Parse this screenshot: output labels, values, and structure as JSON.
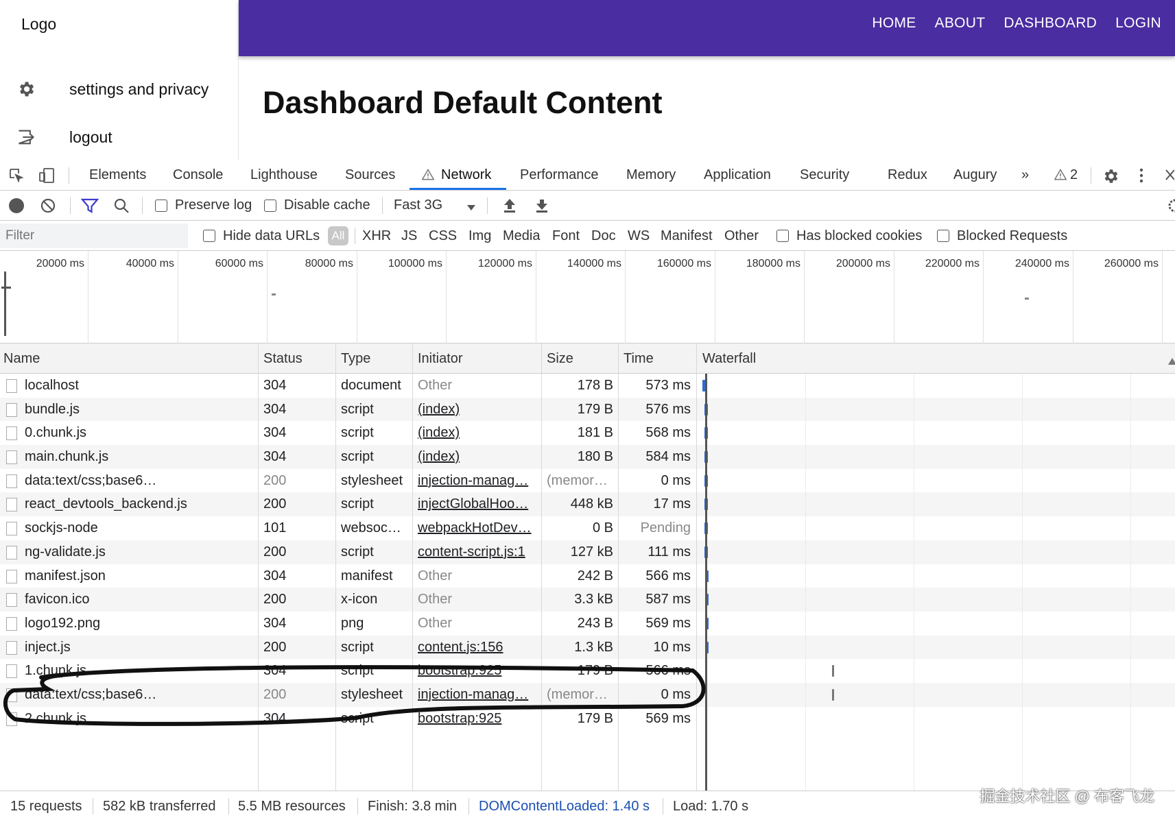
{
  "app": {
    "logo": "Logo",
    "sidebar": [
      {
        "icon": "gear-icon",
        "label": "settings and privacy"
      },
      {
        "icon": "logout-icon",
        "label": "logout"
      }
    ],
    "nav": [
      "HOME",
      "ABOUT",
      "DASHBOARD",
      "LOGIN"
    ],
    "title": "Dashboard Default Content",
    "accent": "#4a2da0"
  },
  "devtools": {
    "tabs": [
      "Elements",
      "Console",
      "Lighthouse",
      "Sources",
      "Network",
      "Performance",
      "Memory",
      "Application",
      "Security",
      "Redux",
      "Augury"
    ],
    "active_tab": "Network",
    "more_tabs": "»",
    "warnings_count": "2",
    "toolbar": {
      "preserve_log": "Preserve log",
      "disable_cache": "Disable cache",
      "throttle": "Fast 3G"
    },
    "filter": {
      "placeholder": "Filter",
      "hide_data_urls": "Hide data URLs",
      "all": "All",
      "types": [
        "XHR",
        "JS",
        "CSS",
        "Img",
        "Media",
        "Font",
        "Doc",
        "WS",
        "Manifest",
        "Other"
      ],
      "has_blocked_cookies": "Has blocked cookies",
      "blocked_requests": "Blocked Requests"
    },
    "overview_ticks": [
      "20000 ms",
      "40000 ms",
      "60000 ms",
      "80000 ms",
      "100000 ms",
      "120000 ms",
      "140000 ms",
      "160000 ms",
      "180000 ms",
      "200000 ms",
      "220000 ms",
      "240000 ms",
      "260000 ms"
    ],
    "columns": [
      "Name",
      "Status",
      "Type",
      "Initiator",
      "Size",
      "Time",
      "Waterfall"
    ],
    "rows": [
      {
        "name": "localhost",
        "status": "304",
        "type": "document",
        "initiator": "Other",
        "size": "178 B",
        "time": "573 ms"
      },
      {
        "name": "bundle.js",
        "status": "304",
        "type": "script",
        "initiator": "(index)",
        "size": "179 B",
        "time": "576 ms"
      },
      {
        "name": "0.chunk.js",
        "status": "304",
        "type": "script",
        "initiator": "(index)",
        "size": "181 B",
        "time": "568 ms"
      },
      {
        "name": "main.chunk.js",
        "status": "304",
        "type": "script",
        "initiator": "(index)",
        "size": "180 B",
        "time": "584 ms"
      },
      {
        "name": "data:text/css;base6…",
        "status": "200",
        "type": "stylesheet",
        "initiator": "injection-manag…",
        "size": "(memor…",
        "time": "0 ms"
      },
      {
        "name": "react_devtools_backend.js",
        "status": "200",
        "type": "script",
        "initiator": "injectGlobalHoo…",
        "size": "448 kB",
        "time": "17 ms"
      },
      {
        "name": "sockjs-node",
        "status": "101",
        "type": "websoc…",
        "initiator": "webpackHotDev…",
        "size": "0 B",
        "time": "Pending"
      },
      {
        "name": "ng-validate.js",
        "status": "200",
        "type": "script",
        "initiator": "content-script.js:1",
        "size": "127 kB",
        "time": "111 ms"
      },
      {
        "name": "manifest.json",
        "status": "304",
        "type": "manifest",
        "initiator": "Other",
        "size": "242 B",
        "time": "566 ms"
      },
      {
        "name": "favicon.ico",
        "status": "200",
        "type": "x-icon",
        "initiator": "Other",
        "size": "3.3 kB",
        "time": "587 ms"
      },
      {
        "name": "logo192.png",
        "status": "304",
        "type": "png",
        "initiator": "Other",
        "size": "243 B",
        "time": "569 ms"
      },
      {
        "name": "inject.js",
        "status": "200",
        "type": "script",
        "initiator": "content.js:156",
        "size": "1.3 kB",
        "time": "10 ms"
      },
      {
        "name": "1.chunk.js",
        "status": "304",
        "type": "script",
        "initiator": "bootstrap:925",
        "size": "179 B",
        "time": "566 ms"
      },
      {
        "name": "data:text/css;base6…",
        "status": "200",
        "type": "stylesheet",
        "initiator": "injection-manag…",
        "size": "(memor…",
        "time": "0 ms"
      },
      {
        "name": "2.chunk.js",
        "status": "304",
        "type": "script",
        "initiator": "bootstrap:925",
        "size": "179 B",
        "time": "569 ms"
      }
    ],
    "status_bar": {
      "requests": "15 requests",
      "transferred": "582 kB transferred",
      "resources": "5.5 MB resources",
      "finish": "Finish: 3.8 min",
      "dom_content_loaded": "DOMContentLoaded: 1.40 s",
      "load": "Load: 1.70 s"
    },
    "watermark": "掘金技术社区 @ 布客飞龙"
  }
}
